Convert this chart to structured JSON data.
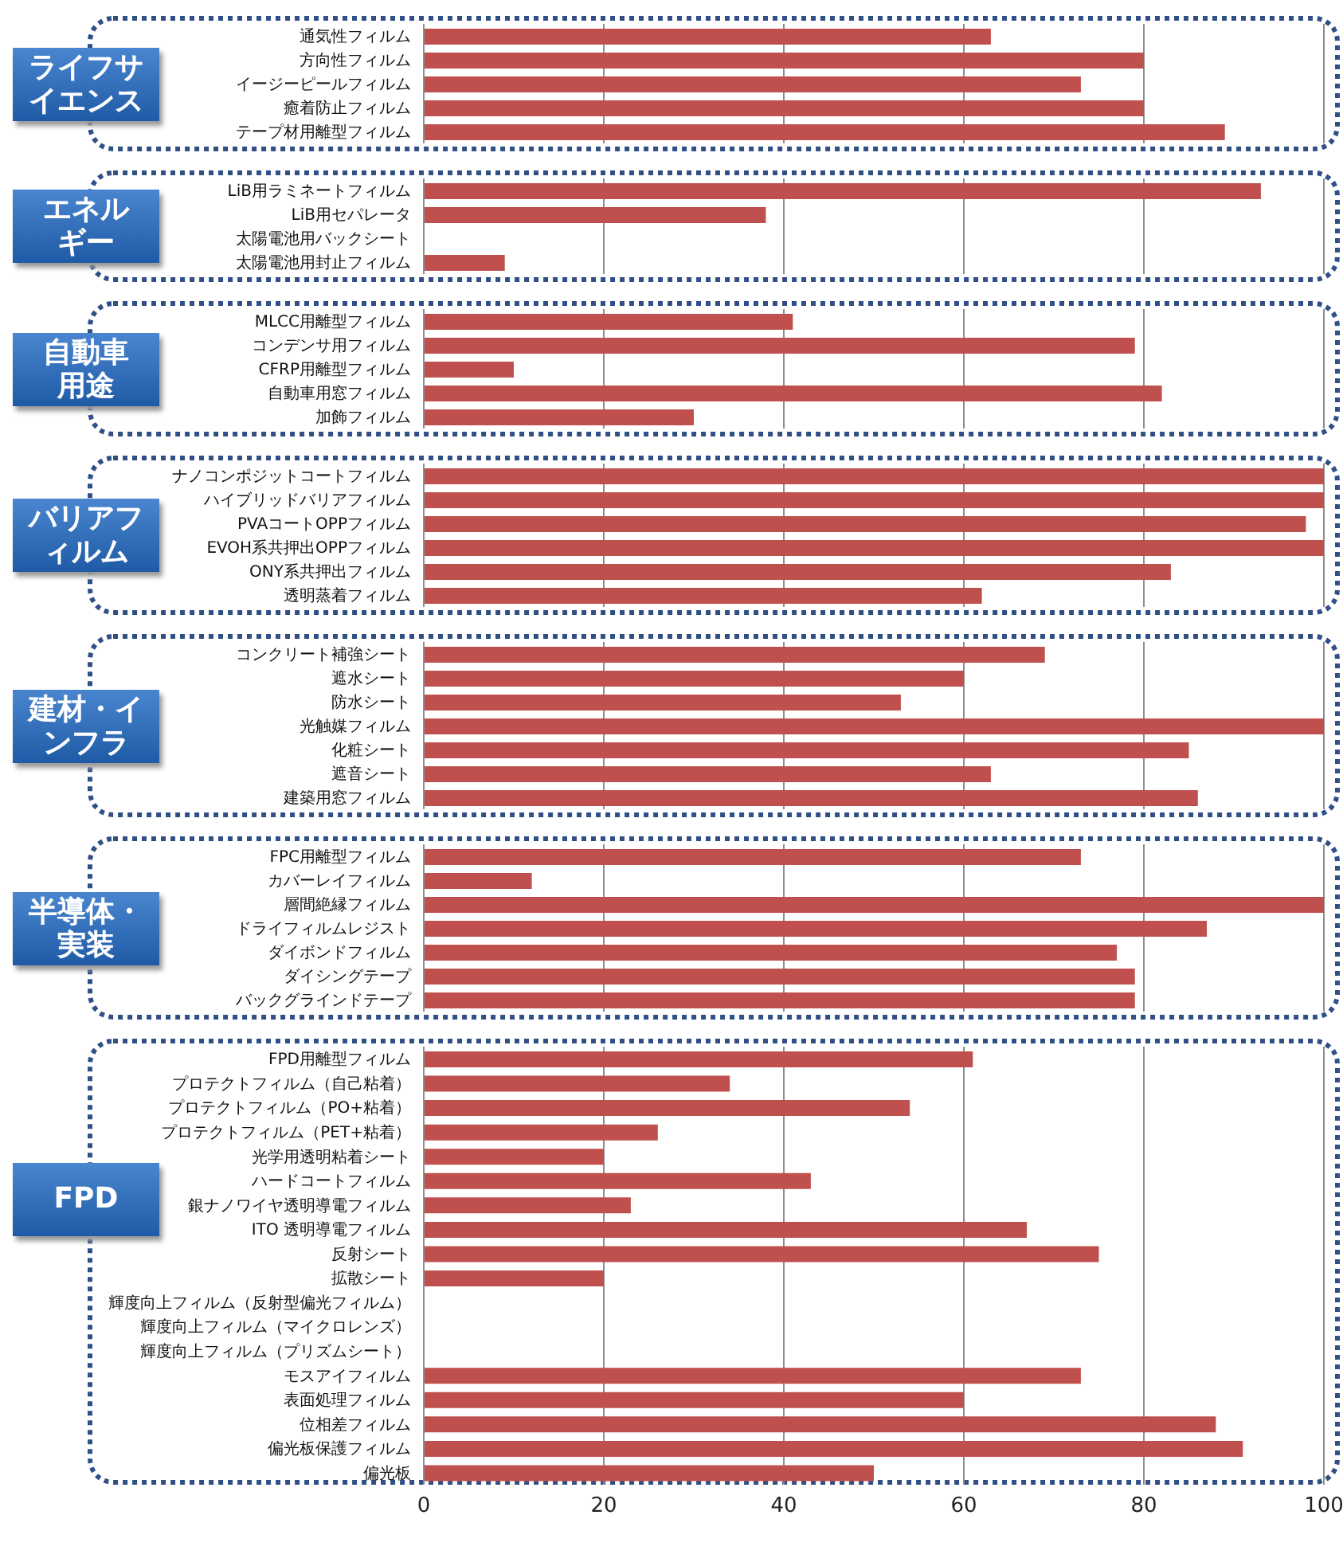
{
  "chart_data": [
    {
      "type": "bar",
      "orientation": "horizontal",
      "title": "ライフサイエンス",
      "categories": [
        "通気性フィルム",
        "方向性フィルム",
        "イージーピールフィルム",
        "癒着防止フィルム",
        "テープ材用離型フィルム"
      ],
      "values": [
        63,
        80,
        73,
        80,
        89
      ],
      "color": "#c0504d",
      "xlim": [
        0,
        100
      ],
      "xticks": [
        0,
        20,
        40,
        60,
        80,
        100
      ],
      "grid": "x",
      "tick_labels": "y"
    },
    {
      "type": "bar",
      "orientation": "horizontal",
      "title": "エネルギー",
      "categories": [
        "LiB用ラミネートフィルム",
        "LiB用セパレータ",
        "太陽電池用バックシート",
        "太陽電池用封止フィルム"
      ],
      "values": [
        93,
        38,
        null,
        9
      ],
      "color": "#c0504d",
      "xlim": [
        0,
        100
      ],
      "xticks": [
        0,
        20,
        40,
        60,
        80,
        100
      ],
      "grid": "x",
      "tick_labels": "y"
    },
    {
      "type": "bar",
      "orientation": "horizontal",
      "title": "自動車用途",
      "categories": [
        "MLCC用離型フィルム",
        "コンデンサ用フィルム",
        "CFRP用離型フィルム",
        "自動車用窓フィルム",
        "加飾フィルム"
      ],
      "values": [
        41,
        79,
        10,
        82,
        30
      ],
      "color": "#c0504d",
      "xlim": [
        0,
        100
      ],
      "xticks": [
        0,
        20,
        40,
        60,
        80,
        100
      ],
      "grid": "x",
      "tick_labels": "y"
    },
    {
      "type": "bar",
      "orientation": "horizontal",
      "title": "バリアフィルム",
      "categories": [
        "ナノコンポジットコートフィルム",
        "ハイブリッドバリアフィルム",
        "PVAコートOPPフィルム",
        "EVOH系共押出OPPフィルム",
        "ONY系共押出フィルム",
        "透明蒸着フィルム"
      ],
      "values": [
        100,
        100,
        98,
        100,
        83,
        62
      ],
      "color": "#c0504d",
      "xlim": [
        0,
        100
      ],
      "xticks": [
        0,
        20,
        40,
        60,
        80,
        100
      ],
      "grid": "x",
      "tick_labels": "y"
    },
    {
      "type": "bar",
      "orientation": "horizontal",
      "title": "建材・インフラ",
      "categories": [
        "コンクリート補強シート",
        "遮水シート",
        "防水シート",
        "光触媒フィルム",
        "化粧シート",
        "遮音シート",
        "建築用窓フィルム"
      ],
      "values": [
        69,
        60,
        53,
        100,
        85,
        63,
        86
      ],
      "color": "#c0504d",
      "xlim": [
        0,
        100
      ],
      "xticks": [
        0,
        20,
        40,
        60,
        80,
        100
      ],
      "grid": "x",
      "tick_labels": "y"
    },
    {
      "type": "bar",
      "orientation": "horizontal",
      "title": "半導体・実装",
      "categories": [
        "FPC用離型フィルム",
        "カバーレイフィルム",
        "層間絶縁フィルム",
        "ドライフィルムレジスト",
        "ダイボンドフィルム",
        "ダイシングテープ",
        "バックグラインドテープ"
      ],
      "values": [
        73,
        12,
        100,
        87,
        77,
        79,
        79
      ],
      "color": "#c0504d",
      "xlim": [
        0,
        100
      ],
      "xticks": [
        0,
        20,
        40,
        60,
        80,
        100
      ],
      "grid": "x",
      "tick_labels": "y"
    },
    {
      "type": "bar",
      "orientation": "horizontal",
      "title": "FPD",
      "categories": [
        "FPD用離型フィルム",
        "プロテクトフィルム（自己粘着）",
        "プロテクトフィルム（PO+粘着）",
        "プロテクトフィルム（PET+粘着）",
        "光学用透明粘着シート",
        "ハードコートフィルム",
        "銀ナノワイヤ透明導電フィルム",
        "ITO 透明導電フィルム",
        "反射シート",
        "拡散シート",
        "輝度向上フィルム（反射型偏光フィルム）",
        "輝度向上フィルム（マイクロレンズ）",
        "輝度向上フィルム（プリズムシート）",
        "モスアイフィルム",
        "表面処理フィルム",
        "位相差フィルム",
        "偏光板保護フィルム",
        "偏光板"
      ],
      "values": [
        61,
        34,
        54,
        26,
        20,
        43,
        23,
        67,
        75,
        20,
        null,
        null,
        null,
        73,
        60,
        88,
        91,
        50
      ],
      "color": "#c0504d",
      "xlim": [
        0,
        100
      ],
      "xticks": [
        0,
        20,
        40,
        60,
        80,
        100
      ],
      "grid": "x"
    }
  ]
}
